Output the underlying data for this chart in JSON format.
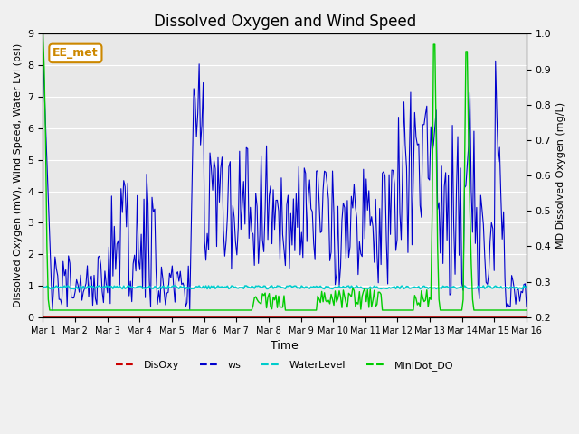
{
  "title": "Dissolved Oxygen and Wind Speed",
  "xlabel": "Time",
  "ylabel_left": "Dissolved Oxygen (mV), Wind Speed, Water Lvl (psi)",
  "ylabel_right": "MD Dissolved Oxygen (mg/L)",
  "ylim_left": [
    0.0,
    9.0
  ],
  "ylim_right": [
    0.2,
    1.0
  ],
  "xtick_labels": [
    "Mar 1",
    "Mar 2",
    "Mar 3",
    "Mar 4",
    "Mar 5",
    "Mar 6",
    "Mar 7",
    "Mar 8",
    "Mar 9",
    "Mar 10",
    "Mar 11",
    "Mar 12",
    "Mar 13",
    "Mar 14",
    "Mar 15",
    "Mar 16"
  ],
  "legend_labels": [
    "DisOxy",
    "ws",
    "WaterLevel",
    "MiniDot_DO"
  ],
  "legend_colors": [
    "#cc0000",
    "#0000cc",
    "#00cccc",
    "#00cc00"
  ],
  "annotation_text": "EE_met",
  "annotation_color": "#cc8800",
  "background_color": "#e8e8e8",
  "grid_color": "#ffffff",
  "title_fontsize": 12
}
